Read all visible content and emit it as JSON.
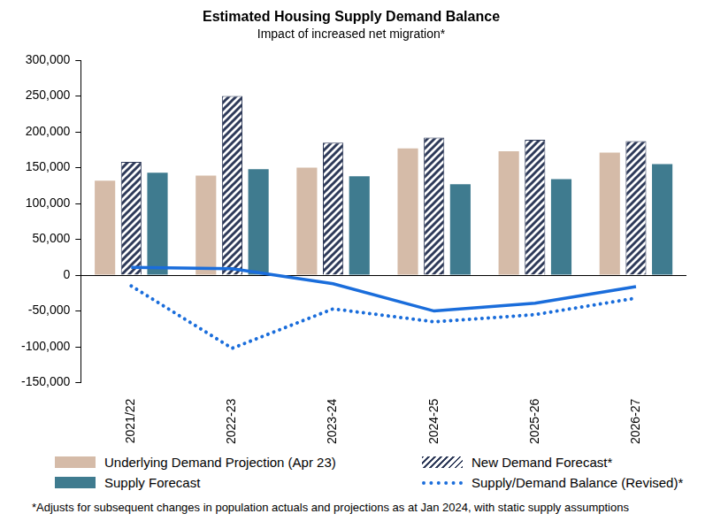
{
  "chart_data": {
    "type": "bar",
    "title": "Estimated Housing Supply Demand Balance",
    "subtitle": "Impact of increased net migration*",
    "categories": [
      "2021/22",
      "2022-23",
      "2023-24",
      "2024-25",
      "2025-26",
      "2026-27"
    ],
    "series": [
      {
        "name": "Underlying Demand Projection (Apr 23)",
        "type": "bar",
        "color": "#d5bba8",
        "values": [
          132000,
          139000,
          150000,
          177000,
          173000,
          171000
        ]
      },
      {
        "name": "New Demand Forecast*",
        "type": "bar",
        "color": "#2e3a59",
        "values": [
          158000,
          250000,
          185000,
          192000,
          189000,
          187000
        ]
      },
      {
        "name": "Supply Forecast",
        "type": "bar",
        "color": "#3f7b8f",
        "values": [
          143000,
          148000,
          138000,
          127000,
          134000,
          155000
        ]
      },
      {
        "type": "line",
        "color": "#1a6ddb",
        "line_style": "solid",
        "marker": "none",
        "values": [
          11000,
          9000,
          -12000,
          -50000,
          -39000,
          -16000
        ]
      },
      {
        "name": "Supply/Demand Balance (Revised)*",
        "type": "line",
        "color": "#1a6ddb",
        "line_style": "dotted",
        "marker": "none",
        "values": [
          -15000,
          -102000,
          -47000,
          -65000,
          -55000,
          -32000
        ]
      }
    ],
    "ylim": [
      -150000,
      300000
    ],
    "yticks": [
      {
        "value": -150000,
        "label": "-150,000"
      },
      {
        "value": -100000,
        "label": "-100,000"
      },
      {
        "value": -50000,
        "label": "-50,000"
      },
      0,
      {
        "value": 50000,
        "label": "50,000"
      },
      {
        "value": 100000,
        "label": "100,000"
      },
      {
        "value": 150000,
        "label": "150,000"
      },
      {
        "value": 200000,
        "label": "200,000"
      },
      {
        "value": 250000,
        "label": "250,000"
      },
      {
        "value": 300000,
        "label": "300,000"
      }
    ],
    "grid": false,
    "legend": "bottom",
    "footnote": "*Adjusts for subsequent changes in population actuals and projections as at Jan 2024, with static supply assumptions"
  }
}
